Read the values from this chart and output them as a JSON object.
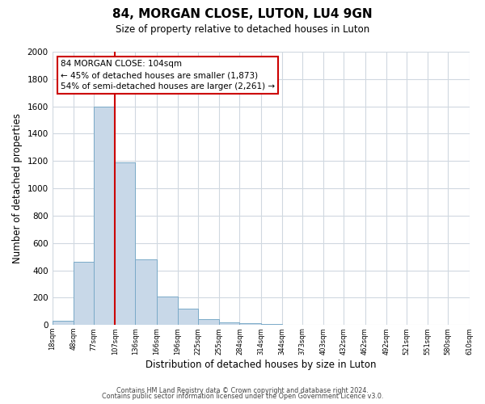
{
  "title": "84, MORGAN CLOSE, LUTON, LU4 9GN",
  "subtitle": "Size of property relative to detached houses in Luton",
  "xlabel": "Distribution of detached houses by size in Luton",
  "ylabel": "Number of detached properties",
  "bin_edges": [
    18,
    48,
    77,
    107,
    136,
    166,
    196,
    225,
    255,
    284,
    314,
    344,
    373,
    403,
    432,
    462,
    492,
    521,
    551,
    580,
    610
  ],
  "bar_heights": [
    30,
    460,
    1600,
    1190,
    480,
    210,
    120,
    45,
    18,
    10,
    5,
    0,
    0,
    0,
    0,
    0,
    0,
    0,
    0,
    0
  ],
  "bar_color": "#c8d8e8",
  "bar_edgecolor": "#7aaac8",
  "vline_x": 107,
  "vline_color": "#cc0000",
  "annotation_title": "84 MORGAN CLOSE: 104sqm",
  "annotation_line1": "← 45% of detached houses are smaller (1,873)",
  "annotation_line2": "54% of semi-detached houses are larger (2,261) →",
  "annotation_box_edgecolor": "#cc0000",
  "annotation_box_facecolor": "#ffffff",
  "ylim": [
    0,
    2000
  ],
  "yticks": [
    0,
    200,
    400,
    600,
    800,
    1000,
    1200,
    1400,
    1600,
    1800,
    2000
  ],
  "tick_labels": [
    "18sqm",
    "48sqm",
    "77sqm",
    "107sqm",
    "136sqm",
    "166sqm",
    "196sqm",
    "225sqm",
    "255sqm",
    "284sqm",
    "314sqm",
    "344sqm",
    "373sqm",
    "403sqm",
    "432sqm",
    "462sqm",
    "492sqm",
    "521sqm",
    "551sqm",
    "580sqm",
    "610sqm"
  ],
  "footnote1": "Contains HM Land Registry data © Crown copyright and database right 2024.",
  "footnote2": "Contains public sector information licensed under the Open Government Licence v3.0.",
  "bg_color": "#ffffff",
  "grid_color": "#d0d8e0"
}
